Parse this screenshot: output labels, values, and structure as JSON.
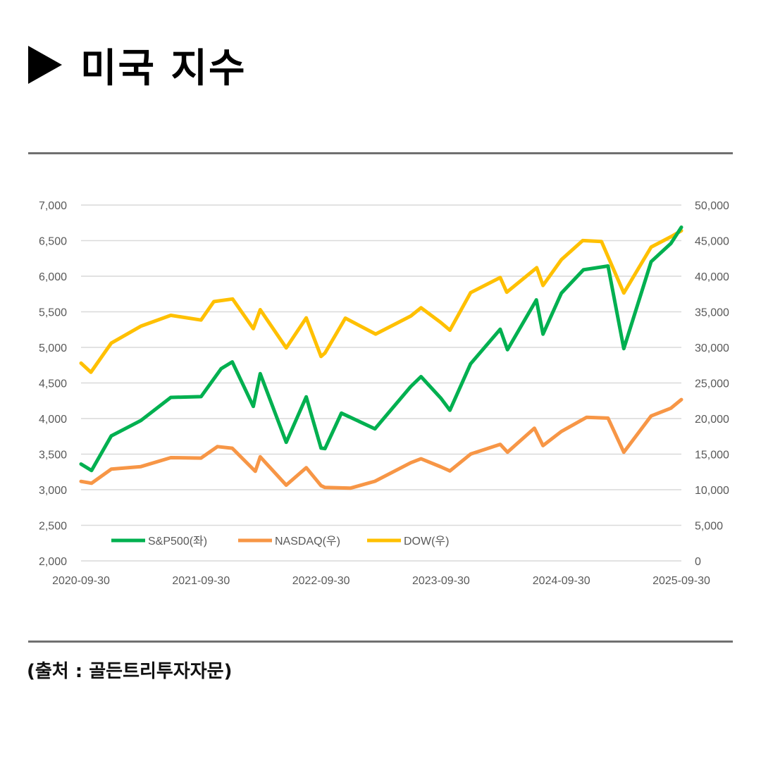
{
  "header": {
    "title": "미국 지수"
  },
  "source": "(출처 : 골든트리투자자문)",
  "chart_data": {
    "type": "line",
    "x_ticks": [
      "2020-09-30",
      "2021-09-30",
      "2022-09-30",
      "2023-09-30",
      "2024-09-30",
      "2025-09-30"
    ],
    "x_range": [
      "2020-09-30",
      "2025-09-30"
    ],
    "y_left": {
      "ylim": [
        2000,
        7000
      ],
      "ticks": [
        "2,000",
        "2,500",
        "3,000",
        "3,500",
        "4,000",
        "4,500",
        "5,000",
        "5,500",
        "6,000",
        "6,500",
        "7,000"
      ]
    },
    "y_right": {
      "ylim": [
        0,
        50000
      ],
      "ticks": [
        "0",
        "5,000",
        "10,000",
        "15,000",
        "20,000",
        "25,000",
        "30,000",
        "35,000",
        "40,000",
        "45,000",
        "50,000"
      ]
    },
    "grid": true,
    "legend_position": "bottom-left",
    "series": [
      {
        "name": "S&P500(좌)",
        "axis": "left",
        "color": "#00B050",
        "x": [
          "2020-09-30",
          "2020-11-01",
          "2020-12-31",
          "2021-03-31",
          "2021-06-30",
          "2021-09-30",
          "2021-11-30",
          "2022-01-03",
          "2022-03-08",
          "2022-03-29",
          "2022-06-16",
          "2022-08-16",
          "2022-09-30",
          "2022-10-12",
          "2022-12-01",
          "2023-03-13",
          "2023-06-30",
          "2023-07-31",
          "2023-09-29",
          "2023-10-27",
          "2023-12-29",
          "2024-03-28",
          "2024-04-19",
          "2024-07-16",
          "2024-08-05",
          "2024-09-30",
          "2024-12-06",
          "2025-02-19",
          "2025-04-08",
          "2025-06-30",
          "2025-08-29",
          "2025-09-30"
        ],
        "values": [
          3360,
          3270,
          3756,
          3972,
          4297,
          4308,
          4700,
          4796,
          4170,
          4631,
          3666,
          4305,
          3585,
          3577,
          4076,
          3855,
          4450,
          4589,
          4288,
          4117,
          4770,
          5254,
          4967,
          5667,
          5186,
          5762,
          6090,
          6144,
          4982,
          6205,
          6460,
          6688
        ]
      },
      {
        "name": "NASDAQ(우)",
        "axis": "right",
        "color": "#F79646",
        "x": [
          "2020-09-30",
          "2020-11-01",
          "2020-12-31",
          "2021-03-31",
          "2021-06-30",
          "2021-09-30",
          "2021-11-19",
          "2022-01-03",
          "2022-03-14",
          "2022-03-29",
          "2022-06-16",
          "2022-08-16",
          "2022-09-30",
          "2022-10-12",
          "2022-12-28",
          "2023-03-13",
          "2023-06-30",
          "2023-07-31",
          "2023-09-29",
          "2023-10-27",
          "2023-12-29",
          "2024-03-28",
          "2024-04-19",
          "2024-07-10",
          "2024-08-05",
          "2024-09-30",
          "2024-12-16",
          "2025-02-19",
          "2025-04-08",
          "2025-06-30",
          "2025-08-29",
          "2025-09-30"
        ],
        "values": [
          11168,
          10911,
          12888,
          13247,
          14504,
          14448,
          16057,
          15833,
          12581,
          14619,
          10646,
          13102,
          10576,
          10321,
          10213,
          11189,
          13788,
          14346,
          13219,
          12643,
          15011,
          16379,
          15282,
          18647,
          16200,
          18189,
          20174,
          20056,
          15268,
          20370,
          21456,
          22660
        ]
      },
      {
        "name": "DOW(우)",
        "axis": "right",
        "color": "#FFC000",
        "x": [
          "2020-09-30",
          "2020-10-30",
          "2020-12-31",
          "2021-03-31",
          "2021-06-30",
          "2021-09-30",
          "2021-11-08",
          "2022-01-04",
          "2022-03-08",
          "2022-03-29",
          "2022-06-16",
          "2022-08-16",
          "2022-09-30",
          "2022-10-12",
          "2022-12-13",
          "2023-03-15",
          "2023-06-30",
          "2023-07-31",
          "2023-09-29",
          "2023-10-27",
          "2023-12-29",
          "2024-03-28",
          "2024-04-17",
          "2024-07-17",
          "2024-08-05",
          "2024-09-30",
          "2024-12-04",
          "2025-01-30",
          "2025-04-08",
          "2025-06-30",
          "2025-08-29",
          "2025-09-30"
        ],
        "values": [
          27782,
          26502,
          30606,
          32981,
          34503,
          33844,
          36432,
          36799,
          32632,
          35294,
          29927,
          34152,
          28726,
          29211,
          34108,
          31875,
          34408,
          35560,
          33508,
          32418,
          37690,
          39807,
          37753,
          41198,
          38703,
          42330,
          45014,
          44882,
          37646,
          44095,
          45545,
          46398
        ]
      }
    ]
  }
}
